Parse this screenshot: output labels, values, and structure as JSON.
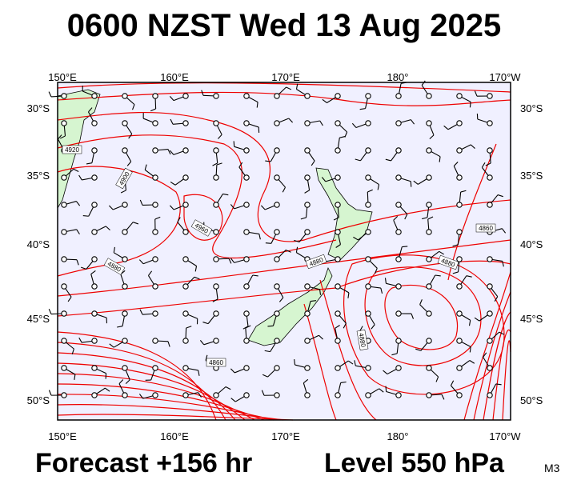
{
  "header": {
    "title": "0600 NZST Wed 13 Aug 2025"
  },
  "map": {
    "top_labels": [
      "150°E",
      "160°E",
      "170°E",
      "180°",
      "170°W"
    ],
    "bottom_labels": [
      "150°E",
      "160°E",
      "170°E",
      "180°",
      "170°W"
    ],
    "left_labels": [
      "30°S",
      "35°S",
      "40°S",
      "45°S",
      "50°S"
    ],
    "right_labels": [
      "30°S",
      "35°S",
      "40°S",
      "45°S",
      "50°S"
    ],
    "contour_labels": [
      "4920",
      "4900",
      "4960",
      "4880",
      "4860",
      "4880",
      "4880",
      "4860",
      "4880"
    ]
  },
  "footer": {
    "forecast": "Forecast +156 hr",
    "level": "Level 550 hPa",
    "code": "M3"
  }
}
